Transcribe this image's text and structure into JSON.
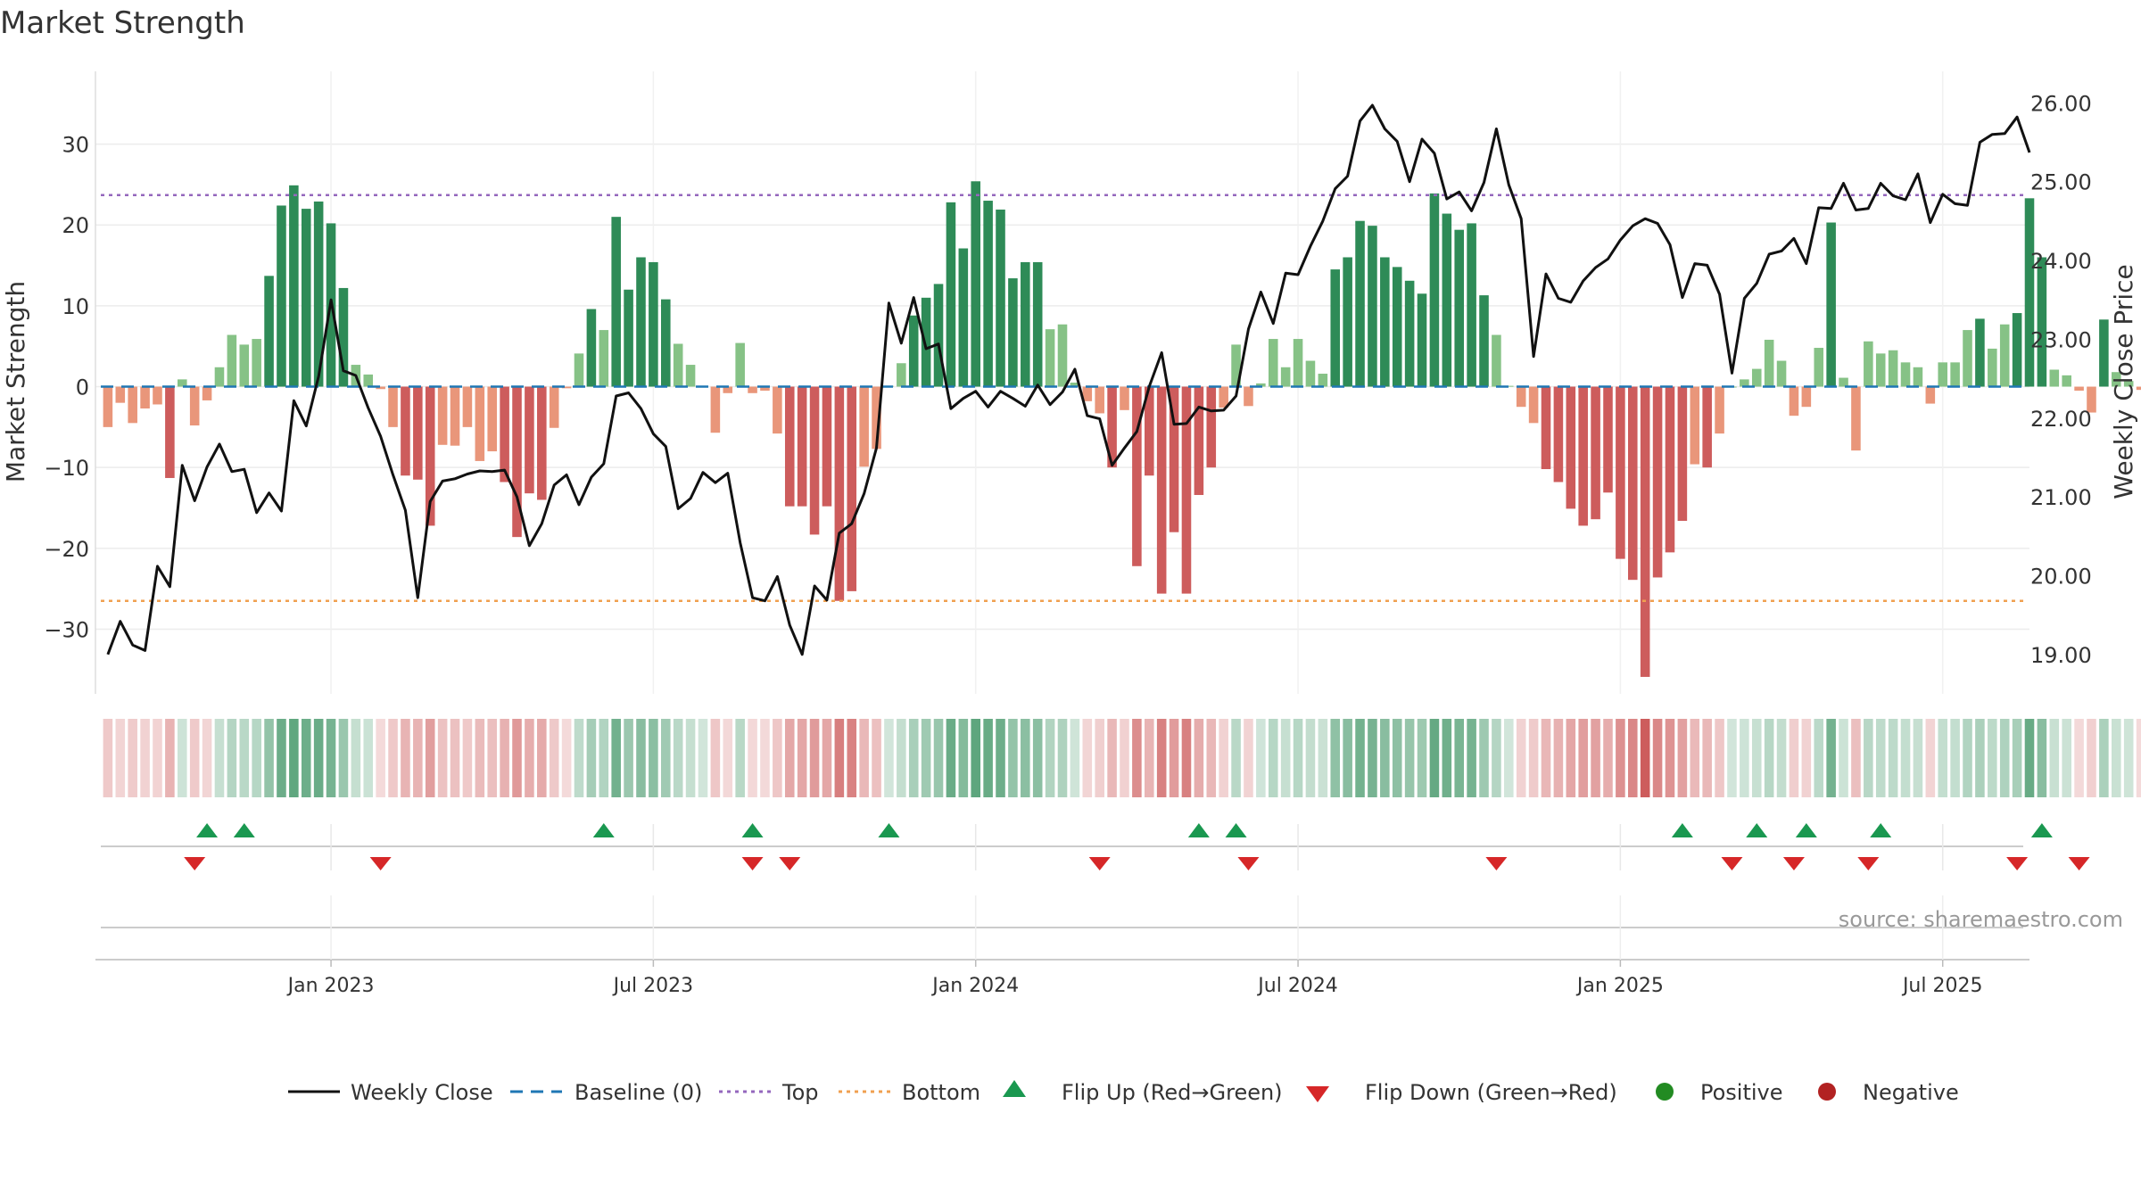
{
  "chart_data": {
    "type": "bar",
    "title": "Market Strength",
    "ylabel_left": "Market Strength",
    "ylabel_right": "Weekly Close Price",
    "ylim_left": [
      -38,
      39
    ],
    "ylim_right": [
      18.5,
      26.4
    ],
    "yticks_left": [
      {
        "value": 30,
        "label": "30"
      },
      {
        "value": 20,
        "label": "20"
      },
      {
        "value": 10,
        "label": "10"
      },
      {
        "value": 0,
        "label": "0"
      },
      {
        "value": -10,
        "label": "−10"
      },
      {
        "value": -20,
        "label": "−20"
      },
      {
        "value": -30,
        "label": "−30"
      }
    ],
    "yticks_right": [
      "26.00",
      "25.00",
      "24.00",
      "23.00",
      "22.00",
      "21.00",
      "20.00",
      "19.00"
    ],
    "x_start_week": -19,
    "x_end_week": 137,
    "x_ticks": [
      {
        "week": 0,
        "label": "Jan 2023"
      },
      {
        "week": 26,
        "label": "Jul 2023"
      },
      {
        "week": 52,
        "label": "Jan 2024"
      },
      {
        "week": 78,
        "label": "Jul 2024"
      },
      {
        "week": 104,
        "label": "Jan 2025"
      },
      {
        "week": 130,
        "label": "Jul 2025"
      }
    ],
    "first_week": -18,
    "top_level": 23.7,
    "bottom_level": -26.5,
    "strength": [
      -5,
      -2,
      -4.5,
      -2.7,
      -2.2,
      -11.3,
      0.9,
      -4.8,
      -1.7,
      2.4,
      6.4,
      5.2,
      5.9,
      13.7,
      22.4,
      24.9,
      22,
      22.9,
      20.2,
      12.2,
      2.7,
      1.5,
      -0.3,
      -5,
      -11,
      -11.5,
      -17.2,
      -7.2,
      -7.3,
      -5,
      -9.2,
      -8,
      -11.8,
      -18.6,
      -13.2,
      -14,
      -5.1,
      -0.2,
      4.1,
      9.6,
      7,
      21,
      12,
      16,
      15.4,
      10.8,
      5.3,
      2.7,
      0.1,
      -5.7,
      -0.8,
      5.4,
      -0.8,
      -0.5,
      -5.8,
      -14.8,
      -14.8,
      -18.3,
      -14.8,
      -26.5,
      -25.3,
      -9.9,
      -7.7,
      0.1,
      2.9,
      8.8,
      11,
      12.7,
      22.8,
      17.1,
      25.4,
      23,
      21.9,
      13.4,
      15.4,
      15.4,
      7.1,
      7.7,
      0.5,
      -1.8,
      -3.3,
      -10,
      -2.9,
      -22.2,
      -11,
      -25.6,
      -18,
      -25.6,
      -13.4,
      -10,
      -2.6,
      5.2,
      -2.4,
      0.4,
      5.9,
      2.4,
      5.9,
      3.2,
      1.6,
      14.5,
      16,
      20.5,
      19.9,
      16,
      14.8,
      13.1,
      11.5,
      23.9,
      21.4,
      19.4,
      20.2,
      11.3,
      6.4,
      0.1,
      -2.5,
      -4.5,
      -10.2,
      -11.8,
      -15.1,
      -17.2,
      -16.4,
      -13.1,
      -21.3,
      -23.9,
      -35.9,
      -23.6,
      -20.5,
      -16.6,
      -9.6,
      -10,
      -5.8,
      0,
      0.9,
      2.2,
      5.8,
      3.2,
      -3.6,
      -2.5,
      4.8,
      20.3,
      1.1,
      -7.9,
      5.6,
      4.1,
      4.5,
      3,
      2.4,
      -2.1,
      3,
      3,
      7,
      8.4,
      4.7,
      7.7,
      9.1,
      23.3,
      16,
      2.1,
      1.4,
      -0.5,
      -3.2,
      8.3,
      1.8,
      0.7,
      -0.4,
      -0.1
    ],
    "close": [
      19.0,
      19.42,
      19.12,
      19.05,
      20.12,
      19.86,
      21.4,
      20.95,
      21.38,
      21.67,
      21.32,
      21.35,
      20.8,
      21.05,
      20.82,
      22.22,
      21.9,
      22.53,
      23.5,
      22.6,
      22.54,
      22.13,
      21.77,
      21.28,
      20.83,
      19.72,
      20.94,
      21.2,
      21.23,
      21.29,
      21.33,
      21.32,
      21.34,
      21.0,
      20.38,
      20.66,
      21.15,
      21.28,
      20.9,
      21.25,
      21.42,
      22.28,
      22.32,
      22.12,
      21.8,
      21.64,
      20.85,
      20.98,
      21.31,
      21.18,
      21.3,
      20.42,
      19.72,
      19.68,
      19.99,
      19.37,
      19.0,
      19.87,
      19.69,
      20.54,
      20.66,
      21.04,
      21.62,
      23.46,
      22.95,
      23.53,
      22.88,
      22.94,
      22.12,
      22.25,
      22.34,
      22.14,
      22.34,
      22.25,
      22.15,
      22.42,
      22.17,
      22.33,
      22.62,
      22.03,
      21.99,
      21.4,
      21.62,
      21.83,
      22.4,
      22.83,
      21.92,
      21.93,
      22.14,
      22.09,
      22.1,
      22.28,
      23.13,
      23.6,
      23.2,
      23.84,
      23.82,
      24.18,
      24.5,
      24.91,
      25.07,
      25.77,
      25.97,
      25.67,
      25.51,
      25.0,
      25.54,
      25.36,
      24.78,
      24.87,
      24.63,
      24.99,
      25.67,
      24.96,
      24.53,
      22.78,
      23.83,
      23.52,
      23.47,
      23.74,
      23.91,
      24.02,
      24.26,
      24.44,
      24.53,
      24.47,
      24.2,
      23.53,
      23.96,
      23.94,
      23.57,
      22.57,
      23.52,
      23.71,
      24.08,
      24.12,
      24.28,
      23.96,
      24.67,
      24.66,
      24.98,
      24.64,
      24.66,
      24.98,
      24.82,
      24.77,
      25.1,
      24.48,
      24.84,
      24.72,
      24.7,
      25.5,
      25.6,
      25.61,
      25.82,
      25.37
    ],
    "flip_up_weeks": [
      -10,
      -7,
      22,
      34,
      45,
      70,
      73,
      109,
      115,
      119,
      125,
      138
    ],
    "flip_down_weeks": [
      -11,
      4,
      34,
      37,
      62,
      74,
      94,
      113,
      118,
      124,
      136,
      141
    ],
    "legend": {
      "weekly_close": "Weekly Close",
      "baseline": "Baseline (0)",
      "top": "Top",
      "bottom": "Bottom",
      "flip_up": "Flip Up (Red→Green)",
      "flip_down": "Flip Down (Green→Red)",
      "positive": "Positive",
      "negative": "Negative"
    },
    "source": "source: sharemaestro.com",
    "colors": {
      "strong_pos": "#2e8b57",
      "weak_pos": "#86c286",
      "strong_neg": "#cd5c5c",
      "weak_neg": "#e9967a",
      "line": "#111111",
      "baseline": "#1f77b4",
      "top": "#9467bd",
      "bottom": "#f0a050",
      "flip_up": "#1a9850",
      "flip_down": "#d62728",
      "positive": "#228b22",
      "negative": "#b22222"
    }
  }
}
